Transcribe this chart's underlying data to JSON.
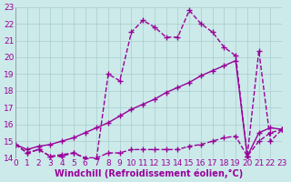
{
  "xlabel": "Windchill (Refroidissement éolien,°C)",
  "bg_color": "#cceaea",
  "line_color": "#990099",
  "grid_color": "#aacccc",
  "text_color": "#990099",
  "xlim": [
    0,
    23
  ],
  "ylim": [
    14,
    23
  ],
  "xticks": [
    0,
    1,
    2,
    3,
    4,
    5,
    6,
    7,
    8,
    9,
    10,
    11,
    12,
    13,
    14,
    15,
    16,
    17,
    18,
    19,
    20,
    21,
    22,
    23
  ],
  "yticks": [
    14,
    15,
    16,
    17,
    18,
    19,
    20,
    21,
    22,
    23
  ],
  "line1_x": [
    0,
    1,
    2,
    3,
    4,
    5,
    6,
    7,
    8,
    9,
    10,
    11,
    12,
    13,
    14,
    15,
    16,
    17,
    18,
    19,
    20,
    21,
    22,
    23
  ],
  "line1_y": [
    14.8,
    14.3,
    14.5,
    14.1,
    14.1,
    14.3,
    14.0,
    14.0,
    14.3,
    14.3,
    14.5,
    14.5,
    14.5,
    14.5,
    14.5,
    14.7,
    14.8,
    15.0,
    15.2,
    15.3,
    14.1,
    15.0,
    15.5,
    15.7
  ],
  "line2_x": [
    0,
    1,
    2,
    3,
    4,
    5,
    6,
    7,
    8,
    9,
    10,
    11,
    12,
    13,
    14,
    15,
    16,
    17,
    18,
    19,
    20,
    21,
    22,
    23
  ],
  "line2_y": [
    14.8,
    14.5,
    14.7,
    14.8,
    15.0,
    15.2,
    15.5,
    15.8,
    16.1,
    16.5,
    16.9,
    17.2,
    17.5,
    17.9,
    18.2,
    18.5,
    18.9,
    19.2,
    19.5,
    19.8,
    14.1,
    15.5,
    15.8,
    15.7
  ],
  "line3_x": [
    0,
    1,
    2,
    3,
    4,
    5,
    6,
    7,
    8,
    9,
    10,
    11,
    12,
    13,
    14,
    15,
    16,
    17,
    18,
    19,
    20,
    21,
    22,
    23
  ],
  "line3_y": [
    14.8,
    14.3,
    14.5,
    14.1,
    14.2,
    14.3,
    14.0,
    14.0,
    19.0,
    18.6,
    21.5,
    22.2,
    21.8,
    21.2,
    21.2,
    22.8,
    22.0,
    21.5,
    20.6,
    20.1,
    14.1,
    20.4,
    15.0,
    15.7
  ],
  "marker": "+",
  "markersize": 4,
  "linewidth": 1.0,
  "fontsize_label": 7,
  "fontsize_tick": 6.5
}
